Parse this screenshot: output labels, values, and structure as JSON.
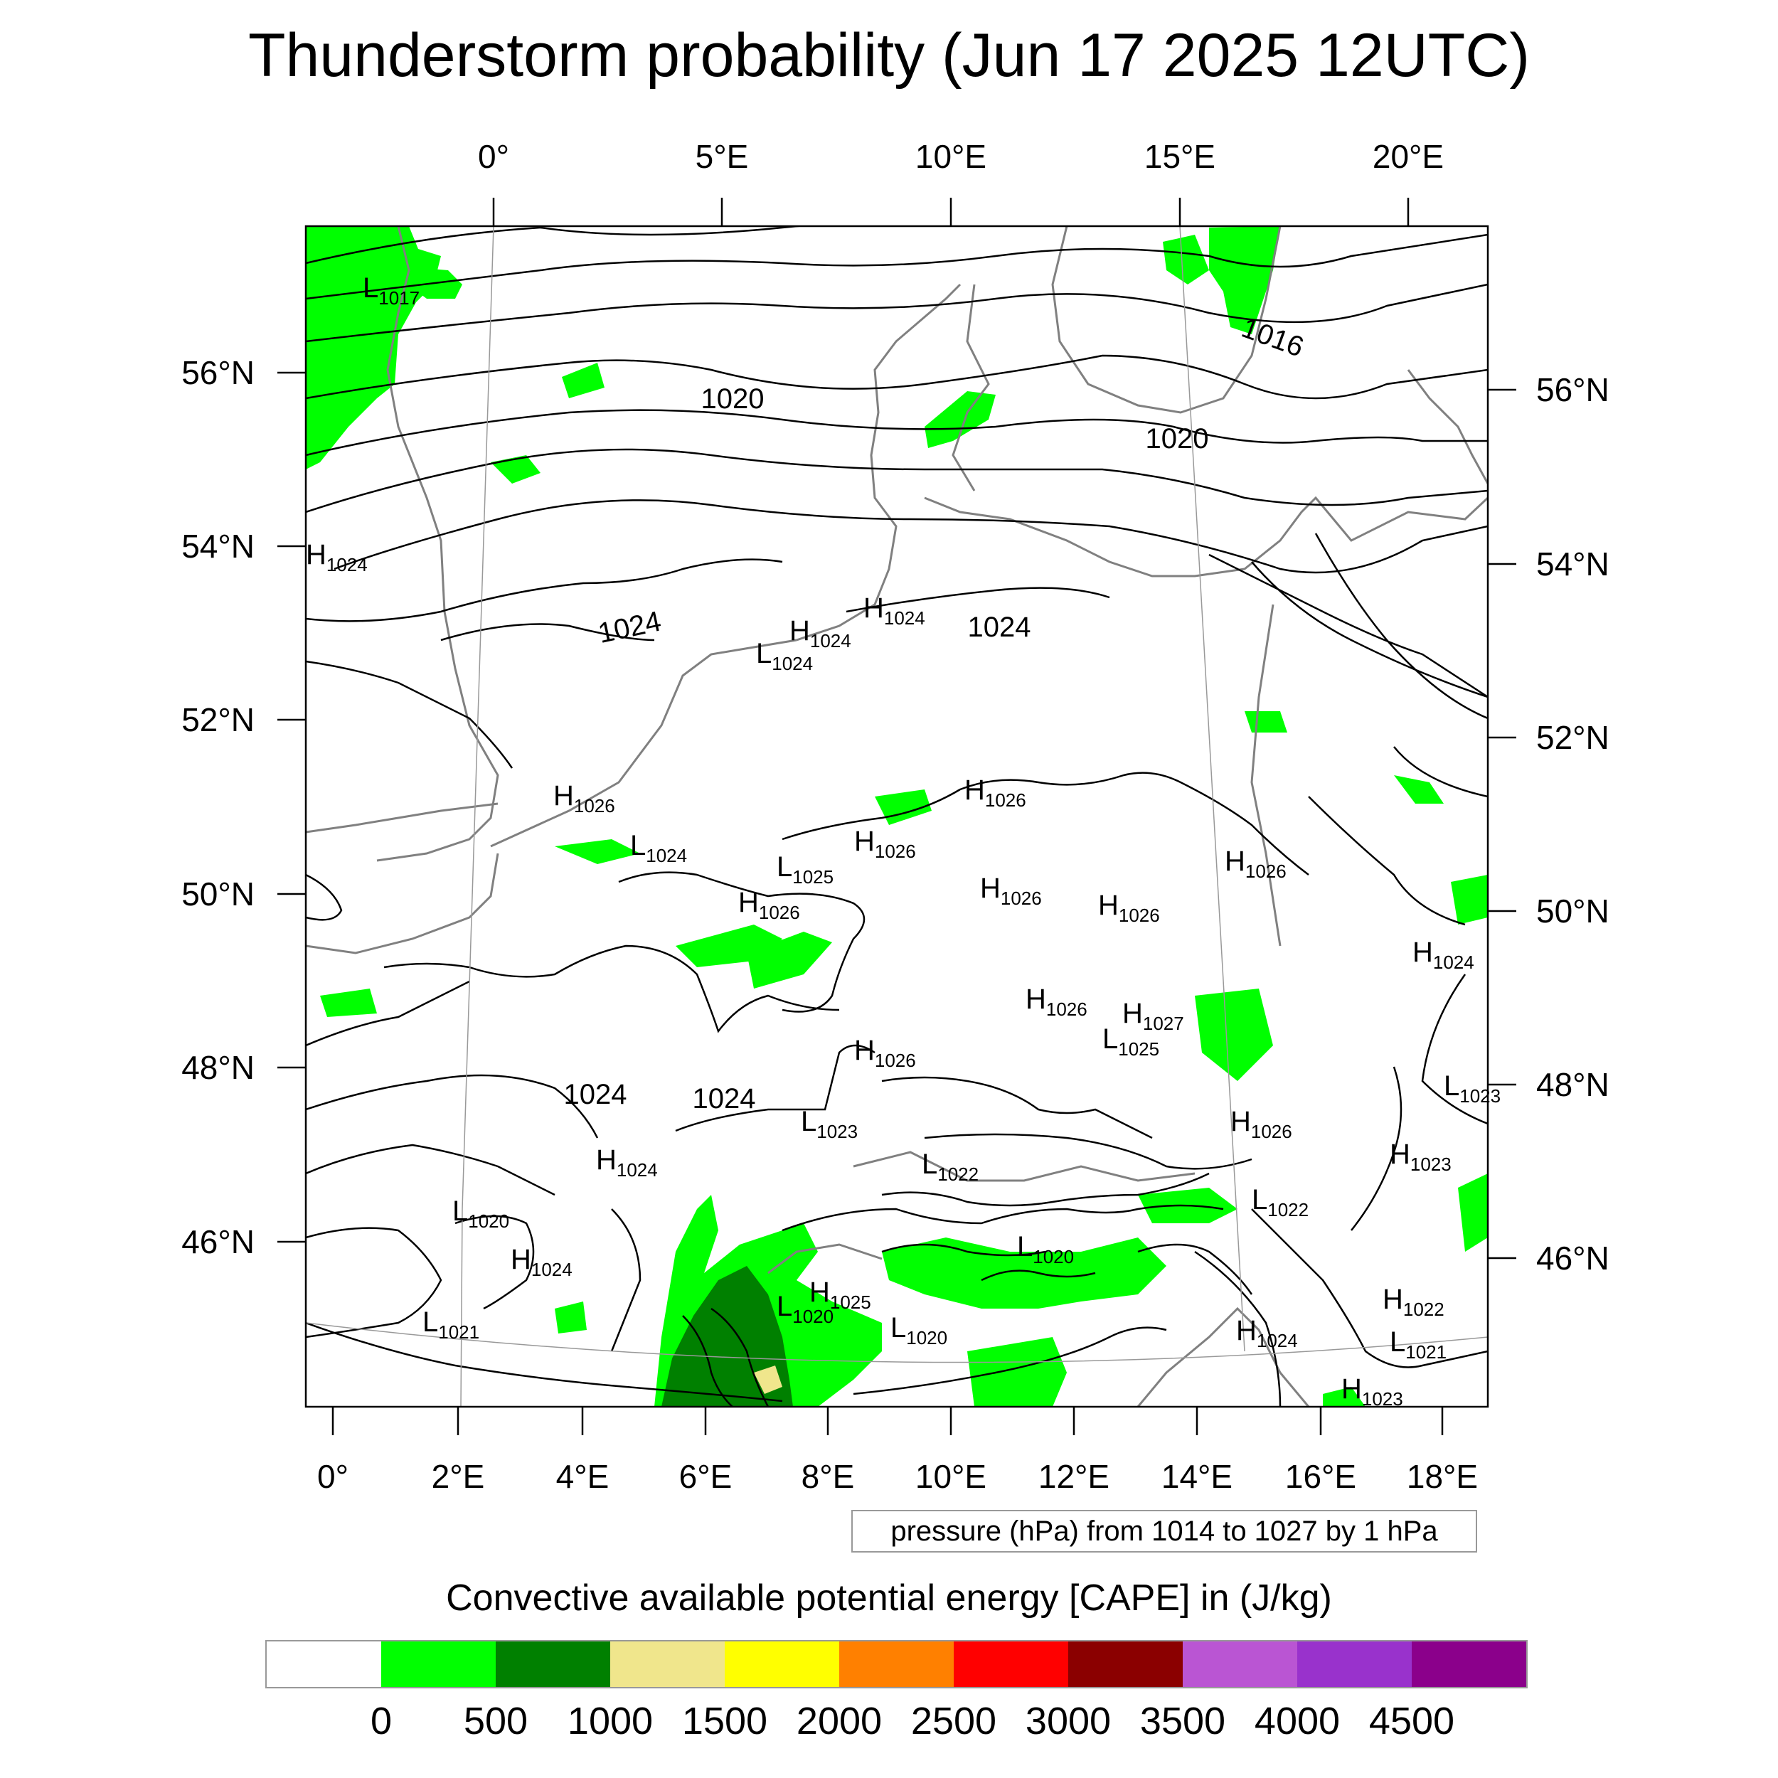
{
  "title": "Thunderstorm probability (Jun 17 2025 12UTC)",
  "map": {
    "top_lon_labels": [
      "0°",
      "5°E",
      "10°E",
      "15°E",
      "20°E"
    ],
    "bottom_lon_labels": [
      "0°",
      "2°E",
      "4°E",
      "6°E",
      "8°E",
      "10°E",
      "12°E",
      "14°E",
      "16°E",
      "18°E"
    ],
    "left_lat_labels": [
      "56°N",
      "54°N",
      "52°N",
      "50°N",
      "48°N",
      "46°N"
    ],
    "right_lat_labels": [
      "56°N",
      "54°N",
      "52°N",
      "50°N",
      "48°N",
      "46°N"
    ],
    "isobar_labels": [
      "1016",
      "1020",
      "1020",
      "1024",
      "1024",
      "1024",
      "1024"
    ],
    "pressure_centers": [
      {
        "type": "L",
        "value": "1017"
      },
      {
        "type": "H",
        "value": "1024"
      },
      {
        "type": "H",
        "value": "1024"
      },
      {
        "type": "L",
        "value": "1024"
      },
      {
        "type": "H",
        "value": "1024"
      },
      {
        "type": "H",
        "value": "1026"
      },
      {
        "type": "H",
        "value": "1026"
      },
      {
        "type": "L",
        "value": "1024"
      },
      {
        "type": "H",
        "value": "1026"
      },
      {
        "type": "L",
        "value": "1025"
      },
      {
        "type": "H",
        "value": "1026"
      },
      {
        "type": "H",
        "value": "1026"
      },
      {
        "type": "H",
        "value": "1026"
      },
      {
        "type": "H",
        "value": "1026"
      },
      {
        "type": "H",
        "value": "1024"
      },
      {
        "type": "H",
        "value": "1026"
      },
      {
        "type": "H",
        "value": "1027"
      },
      {
        "type": "L",
        "value": "1025"
      },
      {
        "type": "H",
        "value": "1026"
      },
      {
        "type": "L",
        "value": "1023"
      },
      {
        "type": "H",
        "value": "1024"
      },
      {
        "type": "L",
        "value": "1022"
      },
      {
        "type": "H",
        "value": "1026"
      },
      {
        "type": "L",
        "value": "1023"
      },
      {
        "type": "H",
        "value": "1023"
      },
      {
        "type": "L",
        "value": "1022"
      },
      {
        "type": "H",
        "value": "1024"
      },
      {
        "type": "L",
        "value": "1020"
      },
      {
        "type": "H",
        "value": "1025"
      },
      {
        "type": "L",
        "value": "1020"
      },
      {
        "type": "L",
        "value": "1020"
      },
      {
        "type": "L",
        "value": "1020"
      },
      {
        "type": "L",
        "value": "1021"
      },
      {
        "type": "H",
        "value": "1024"
      },
      {
        "type": "H",
        "value": "1022"
      },
      {
        "type": "L",
        "value": "1021"
      },
      {
        "type": "H",
        "value": "1023"
      }
    ]
  },
  "pressure_range_text": "pressure (hPa) from 1014 to 1027 by 1 hPa",
  "legend": {
    "title": "Convective available potential energy [CAPE] in (J/kg)",
    "colors": [
      "#ffffff",
      "#00ff00",
      "#008000",
      "#f0e68c",
      "#ffff00",
      "#ff8000",
      "#ff0000",
      "#8b0000",
      "#ba55d3",
      "#9932cc",
      "#8b008b"
    ],
    "ticks": [
      "0",
      "500",
      "1000",
      "1500",
      "2000",
      "2500",
      "3000",
      "3500",
      "4000",
      "4500"
    ]
  },
  "colors": {
    "isobar": "#000000",
    "coastline": "#808080",
    "cape_low": "#00ff00",
    "cape_mid": "#008000",
    "cape_high": "#f0e68c"
  }
}
